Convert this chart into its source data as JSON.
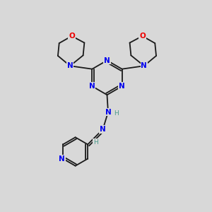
{
  "background_color": "#d8d8d8",
  "bond_color": "#1a1a1a",
  "N_color": "#0000ee",
  "O_color": "#ee0000",
  "H_color": "#4a9a8a",
  "figsize": [
    3.0,
    3.0
  ],
  "dpi": 100,
  "xlim": [
    0,
    10
  ],
  "ylim": [
    0,
    10
  ]
}
